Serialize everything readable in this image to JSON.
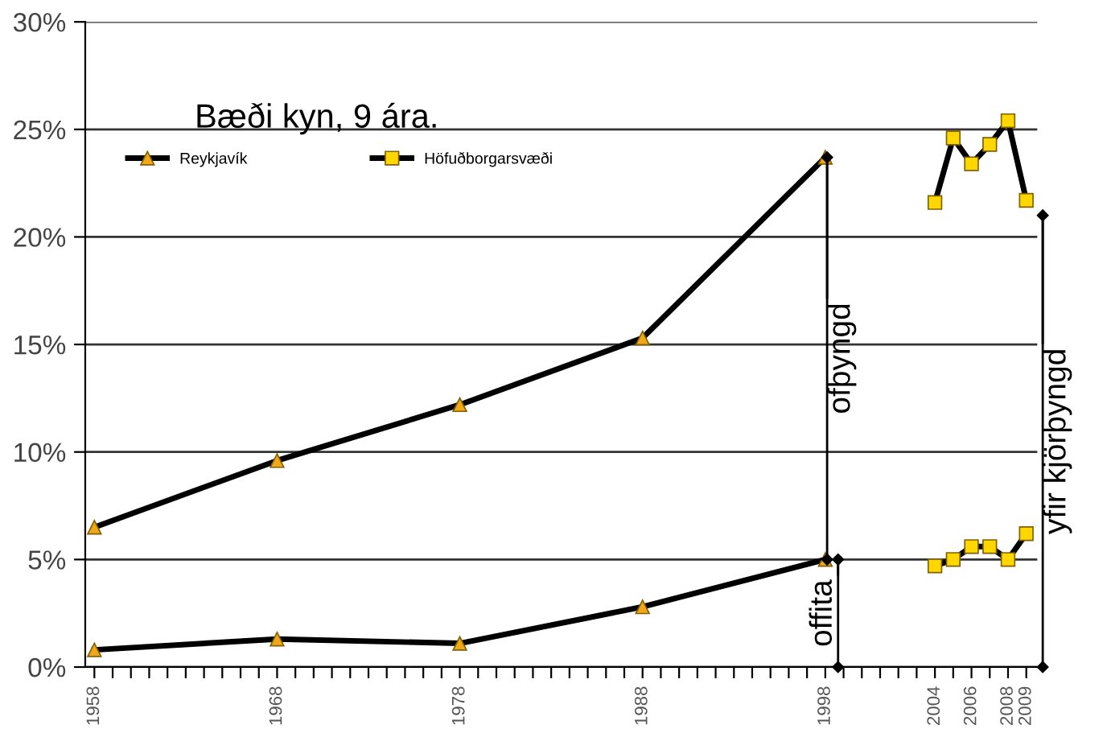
{
  "chart_data": {
    "type": "line",
    "series": [
      {
        "name": "Reykjavík",
        "color": "#f0a818",
        "marker": "triangle",
        "x": [
          1958,
          1968,
          1978,
          1988,
          1998
        ],
        "values": [
          6.5,
          9.6,
          12.2,
          15.3,
          23.7
        ]
      },
      {
        "name": "Höfuðborgarsvæði",
        "color": "#ffd700",
        "marker": "square",
        "x": [
          2004,
          2005,
          2006,
          2007,
          2008,
          2009
        ],
        "values": [
          21.6,
          24.6,
          23.4,
          24.3,
          25.4,
          21.7
        ]
      },
      {
        "color": "#f0a818",
        "marker": "triangle",
        "x": [
          1958,
          1968,
          1978,
          1988,
          1998
        ],
        "values": [
          0.8,
          1.3,
          1.1,
          2.8,
          5.0
        ]
      },
      {
        "color": "#ffd700",
        "marker": "square",
        "x": [
          2004,
          2005,
          2006,
          2007,
          2008,
          2009
        ],
        "values": [
          4.7,
          5.0,
          5.6,
          5.6,
          5.0,
          6.2
        ]
      }
    ],
    "annotations": [
      "Bæði kyn, 9 ára.",
      {
        "text": "ofþyngd",
        "x": 1998.1,
        "y": 23.7
      },
      {
        "text": "offita",
        "x": 1998.7,
        "y": 5.0
      },
      {
        "text": "yfir kjörþyngd",
        "x": 2009.9,
        "y": 21
      }
    ],
    "xlim": [
      1957.5,
      2009.6
    ],
    "xticks": [
      1958,
      {
        "value": 1959,
        "label": null
      },
      {
        "value": 1960,
        "label": null
      },
      {
        "value": 1961,
        "label": null
      },
      {
        "value": 1962,
        "label": null
      },
      {
        "value": 1963,
        "label": null
      },
      {
        "value": 1964,
        "label": null
      },
      {
        "value": 1965,
        "label": null
      },
      {
        "value": 1966,
        "label": null
      },
      {
        "value": 1967,
        "label": null
      },
      1968,
      {
        "value": 1969,
        "label": null
      },
      {
        "value": 1970,
        "label": null
      },
      {
        "value": 1971,
        "label": null
      },
      {
        "value": 1972,
        "label": null
      },
      {
        "value": 1973,
        "label": null
      },
      {
        "value": 1974,
        "label": null
      },
      {
        "value": 1975,
        "label": null
      },
      {
        "value": 1976,
        "label": null
      },
      {
        "value": 1977,
        "label": null
      },
      1978,
      {
        "value": 1979,
        "label": null
      },
      {
        "value": 1980,
        "label": null
      },
      {
        "value": 1981,
        "label": null
      },
      {
        "value": 1982,
        "label": null
      },
      {
        "value": 1983,
        "label": null
      },
      {
        "value": 1984,
        "label": null
      },
      {
        "value": 1985,
        "label": null
      },
      {
        "value": 1986,
        "label": null
      },
      {
        "value": 1987,
        "label": null
      },
      1988,
      {
        "value": 1989,
        "label": null
      },
      {
        "value": 1990,
        "label": null
      },
      {
        "value": 1991,
        "label": null
      },
      {
        "value": 1992,
        "label": null
      },
      {
        "value": 1993,
        "label": null
      },
      {
        "value": 1994,
        "label": null
      },
      {
        "value": 1995,
        "label": null
      },
      {
        "value": 1996,
        "label": null
      },
      {
        "value": 1997,
        "label": null
      },
      1998,
      {
        "value": 1999,
        "label": null
      },
      {
        "value": 2000,
        "label": null
      },
      {
        "value": 2001,
        "label": null
      },
      {
        "value": 2002,
        "label": null
      },
      {
        "value": 2003,
        "label": null
      },
      2004,
      {
        "value": 2005,
        "label": null
      },
      2006,
      {
        "value": 2007,
        "label": null
      },
      2008,
      2009
    ],
    "ylim": [
      0,
      30
    ],
    "yticks": [
      {
        "value": 0,
        "label": "0%"
      },
      {
        "value": 5,
        "label": "5%"
      },
      {
        "value": 10,
        "label": "10%"
      },
      {
        "value": 15,
        "label": "15%"
      },
      {
        "value": 20,
        "label": "20%"
      },
      {
        "value": 25,
        "label": "25%"
      },
      {
        "value": 30,
        "label": "30%"
      }
    ],
    "grid": "y",
    "legend": "top left",
    "line_style": "solid"
  }
}
